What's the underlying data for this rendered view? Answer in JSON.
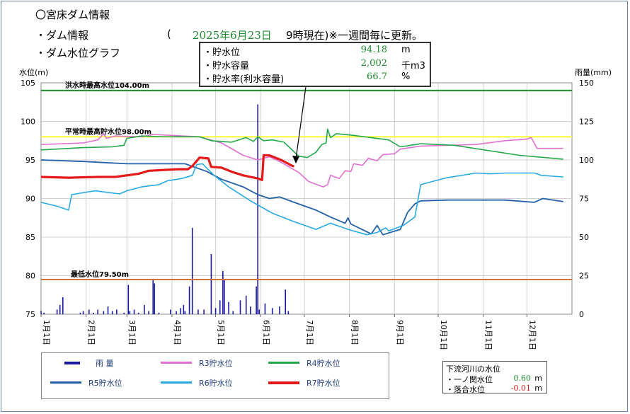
{
  "header": {
    "title": "〇宮床ダム情報",
    "section1": "・ダム情報",
    "paren_open": "(",
    "date": "2025年6月23日",
    "time_note": "9時現在)※一週間毎に更新。",
    "section2": "・ダム水位グラフ"
  },
  "infobox": {
    "rows": [
      {
        "label": "・貯水位",
        "value": "94.18",
        "unit": "m"
      },
      {
        "label": "・貯水容量",
        "value": "2,002",
        "unit": "千m3"
      },
      {
        "label": "・貯水率(利水容量)",
        "value": "66.7",
        "unit": "%"
      }
    ]
  },
  "legend": {
    "rain": "雨 量",
    "r3": "R3貯水位",
    "r4": "R4貯水位",
    "r5": "R5貯水位",
    "r6": "R6貯水位",
    "r7": "R7貯水位"
  },
  "river": {
    "title": "下流河川の水位",
    "rows": [
      {
        "name": "・一ノ関水位",
        "value": "0.60",
        "unit": "m",
        "color": "#1d8a2c"
      },
      {
        "name": "・落合水位",
        "value": "-0.01",
        "unit": "m",
        "color": "#d01818"
      }
    ]
  },
  "chart_data": {
    "type": "line",
    "ylabel": "水位(m)",
    "y2label": "雨量(mm)",
    "ylim": [
      75,
      105
    ],
    "y2lim": [
      0,
      150
    ],
    "yticks": [
      75,
      80,
      85,
      90,
      95,
      100,
      105
    ],
    "y2ticks": [
      0,
      25,
      50,
      75,
      100,
      125,
      150
    ],
    "xlim": [
      1,
      366
    ],
    "x_ticks": [
      {
        "label": "1月1日",
        "day": 1
      },
      {
        "label": "2月1日",
        "day": 32
      },
      {
        "label": "3月1日",
        "day": 60
      },
      {
        "label": "4月1日",
        "day": 91
      },
      {
        "label": "5月1日",
        "day": 121
      },
      {
        "label": "6月1日",
        "day": 152
      },
      {
        "label": "7月1日",
        "day": 182
      },
      {
        "label": "8月1日",
        "day": 213
      },
      {
        "label": "9月1日",
        "day": 244
      },
      {
        "label": "10月1日",
        "day": 274
      },
      {
        "label": "11月1日",
        "day": 305
      },
      {
        "label": "12月1日",
        "day": 335
      }
    ],
    "reference_lines": [
      {
        "label": "洪水時最高水位104.00m",
        "y": 104.0,
        "color": "#1e8c28"
      },
      {
        "label": "平常時最高貯水位98.00m",
        "y": 98.0,
        "color": "#ffff33"
      },
      {
        "label": "最低水位79.50m",
        "y": 79.5,
        "color": "#d2733a"
      }
    ],
    "series": [
      {
        "name": "R3貯水位",
        "color": "#e070d0",
        "width": 1.6,
        "points": [
          [
            1,
            97
          ],
          [
            30,
            97.2
          ],
          [
            40,
            97.6
          ],
          [
            44,
            98.4
          ],
          [
            46,
            97.8
          ],
          [
            52,
            98.1
          ],
          [
            70,
            98.0
          ],
          [
            78,
            98.3
          ],
          [
            110,
            98.0
          ],
          [
            125,
            97.2
          ],
          [
            140,
            95.6
          ],
          [
            150,
            95.0
          ],
          [
            158,
            95.4
          ],
          [
            165,
            94.8
          ],
          [
            178,
            93.4
          ],
          [
            185,
            92.2
          ],
          [
            195,
            91.5
          ],
          [
            198,
            91.8
          ],
          [
            200,
            93.0
          ],
          [
            206,
            92.6
          ],
          [
            210,
            93.6
          ],
          [
            214,
            93.5
          ],
          [
            216,
            94.5
          ],
          [
            222,
            94.3
          ],
          [
            226,
            95.2
          ],
          [
            232,
            94.9
          ],
          [
            236,
            95.7
          ],
          [
            244,
            95.8
          ],
          [
            248,
            96.4
          ],
          [
            262,
            96.8
          ],
          [
            300,
            97.0
          ],
          [
            320,
            97.5
          ],
          [
            335,
            97.7
          ],
          [
            338,
            97.9
          ],
          [
            342,
            96.5
          ],
          [
            360,
            96.5
          ]
        ]
      },
      {
        "name": "R4貯水位",
        "color": "#22a84a",
        "width": 1.6,
        "points": [
          [
            1,
            96.3
          ],
          [
            30,
            96.6
          ],
          [
            50,
            96.7
          ],
          [
            58,
            96.9
          ],
          [
            60,
            97.8
          ],
          [
            70,
            98.1
          ],
          [
            85,
            98.0
          ],
          [
            110,
            98.0
          ],
          [
            118,
            97.5
          ],
          [
            132,
            97.3
          ],
          [
            142,
            97.9
          ],
          [
            147,
            97.4
          ],
          [
            150,
            98.0
          ],
          [
            154,
            97.5
          ],
          [
            160,
            97.6
          ],
          [
            168,
            97.3
          ],
          [
            178,
            95.5
          ],
          [
            184,
            95.3
          ],
          [
            190,
            96.0
          ],
          [
            194,
            97.0
          ],
          [
            197,
            97.2
          ],
          [
            198,
            99.0
          ],
          [
            200,
            97.9
          ],
          [
            204,
            98.4
          ],
          [
            215,
            98.2
          ],
          [
            240,
            97.6
          ],
          [
            248,
            96.7
          ],
          [
            255,
            96.9
          ],
          [
            262,
            97.1
          ],
          [
            285,
            96.9
          ],
          [
            330,
            95.6
          ],
          [
            360,
            95.1
          ]
        ]
      },
      {
        "name": "R5貯水位",
        "color": "#2460a8",
        "width": 1.8,
        "points": [
          [
            1,
            95.0
          ],
          [
            30,
            94.8
          ],
          [
            60,
            94.5
          ],
          [
            80,
            94.5
          ],
          [
            100,
            94.5
          ],
          [
            115,
            93.5
          ],
          [
            125,
            92.5
          ],
          [
            140,
            91.5
          ],
          [
            150,
            90.5
          ],
          [
            158,
            90.0
          ],
          [
            165,
            90.2
          ],
          [
            175,
            89.5
          ],
          [
            190,
            88.5
          ],
          [
            200,
            87.6
          ],
          [
            210,
            86.8
          ],
          [
            212,
            87.5
          ],
          [
            214,
            86.7
          ],
          [
            228,
            85.4
          ],
          [
            232,
            86.5
          ],
          [
            236,
            85.3
          ],
          [
            248,
            86.0
          ],
          [
            253,
            88.2
          ],
          [
            258,
            89.3
          ],
          [
            262,
            89.7
          ],
          [
            280,
            89.8
          ],
          [
            320,
            89.8
          ],
          [
            340,
            89.5
          ],
          [
            346,
            90.0
          ],
          [
            360,
            89.6
          ]
        ]
      },
      {
        "name": "R6貯水位",
        "color": "#28a8e0",
        "width": 1.6,
        "points": [
          [
            1,
            89.5
          ],
          [
            12,
            89.0
          ],
          [
            20,
            88.5
          ],
          [
            22,
            90.5
          ],
          [
            38,
            91.0
          ],
          [
            55,
            90.6
          ],
          [
            60,
            91.0
          ],
          [
            70,
            91.5
          ],
          [
            82,
            91.8
          ],
          [
            88,
            92.3
          ],
          [
            98,
            92.6
          ],
          [
            105,
            93.0
          ],
          [
            108,
            94.4
          ],
          [
            112,
            94.5
          ],
          [
            120,
            93.0
          ],
          [
            130,
            91.5
          ],
          [
            145,
            89.7
          ],
          [
            160,
            88.1
          ],
          [
            175,
            87.0
          ],
          [
            190,
            86.0
          ],
          [
            200,
            86.8
          ],
          [
            212,
            86.0
          ],
          [
            225,
            85.3
          ],
          [
            232,
            85.6
          ],
          [
            238,
            86.2
          ],
          [
            240,
            85.8
          ],
          [
            250,
            86.5
          ],
          [
            258,
            87.6
          ],
          [
            262,
            91.8
          ],
          [
            270,
            92.2
          ],
          [
            280,
            92.7
          ],
          [
            300,
            93.3
          ],
          [
            310,
            93.2
          ],
          [
            320,
            93.3
          ],
          [
            340,
            93.3
          ],
          [
            345,
            93.0
          ],
          [
            360,
            92.8
          ]
        ]
      },
      {
        "name": "R7貯水位",
        "color": "#e41a1a",
        "width": 3.2,
        "points": [
          [
            1,
            92.8
          ],
          [
            20,
            92.7
          ],
          [
            40,
            92.8
          ],
          [
            52,
            92.8
          ],
          [
            68,
            93.2
          ],
          [
            75,
            93.6
          ],
          [
            95,
            93.8
          ],
          [
            102,
            93.8
          ],
          [
            105,
            94.2
          ],
          [
            110,
            95.3
          ],
          [
            116,
            95.2
          ],
          [
            118,
            94.1
          ],
          [
            125,
            94.0
          ],
          [
            133,
            93.4
          ],
          [
            140,
            93.0
          ],
          [
            150,
            92.6
          ],
          [
            153,
            92.4
          ],
          [
            154,
            95.6
          ],
          [
            158,
            95.6
          ],
          [
            166,
            95.0
          ],
          [
            174,
            94.2
          ],
          [
            175,
            94.2
          ]
        ]
      }
    ],
    "rain": {
      "name": "雨量",
      "color": "#1a1aa0",
      "bars": [
        [
          1,
          2
        ],
        [
          3,
          1
        ],
        [
          12,
          3
        ],
        [
          14,
          6
        ],
        [
          16,
          11
        ],
        [
          28,
          1
        ],
        [
          30,
          2
        ],
        [
          34,
          3
        ],
        [
          37,
          1
        ],
        [
          40,
          3
        ],
        [
          44,
          2
        ],
        [
          47,
          5
        ],
        [
          50,
          2
        ],
        [
          53,
          3
        ],
        [
          58,
          1
        ],
        [
          61,
          19
        ],
        [
          62,
          2
        ],
        [
          65,
          3
        ],
        [
          68,
          1
        ],
        [
          72,
          6
        ],
        [
          75,
          2
        ],
        [
          78,
          23
        ],
        [
          79,
          20
        ],
        [
          82,
          1
        ],
        [
          90,
          3
        ],
        [
          94,
          2
        ],
        [
          97,
          4
        ],
        [
          99,
          6
        ],
        [
          100,
          2
        ],
        [
          103,
          18
        ],
        [
          105,
          56
        ],
        [
          109,
          3
        ],
        [
          113,
          3
        ],
        [
          118,
          39
        ],
        [
          121,
          4
        ],
        [
          124,
          9
        ],
        [
          126,
          28
        ],
        [
          127,
          22
        ],
        [
          130,
          8
        ],
        [
          133,
          2
        ],
        [
          138,
          9
        ],
        [
          142,
          12
        ],
        [
          145,
          5
        ],
        [
          149,
          18
        ],
        [
          150,
          136
        ],
        [
          151,
          3
        ],
        [
          155,
          7
        ],
        [
          160,
          4
        ],
        [
          165,
          5
        ],
        [
          169,
          16
        ],
        [
          171,
          2
        ]
      ]
    }
  }
}
